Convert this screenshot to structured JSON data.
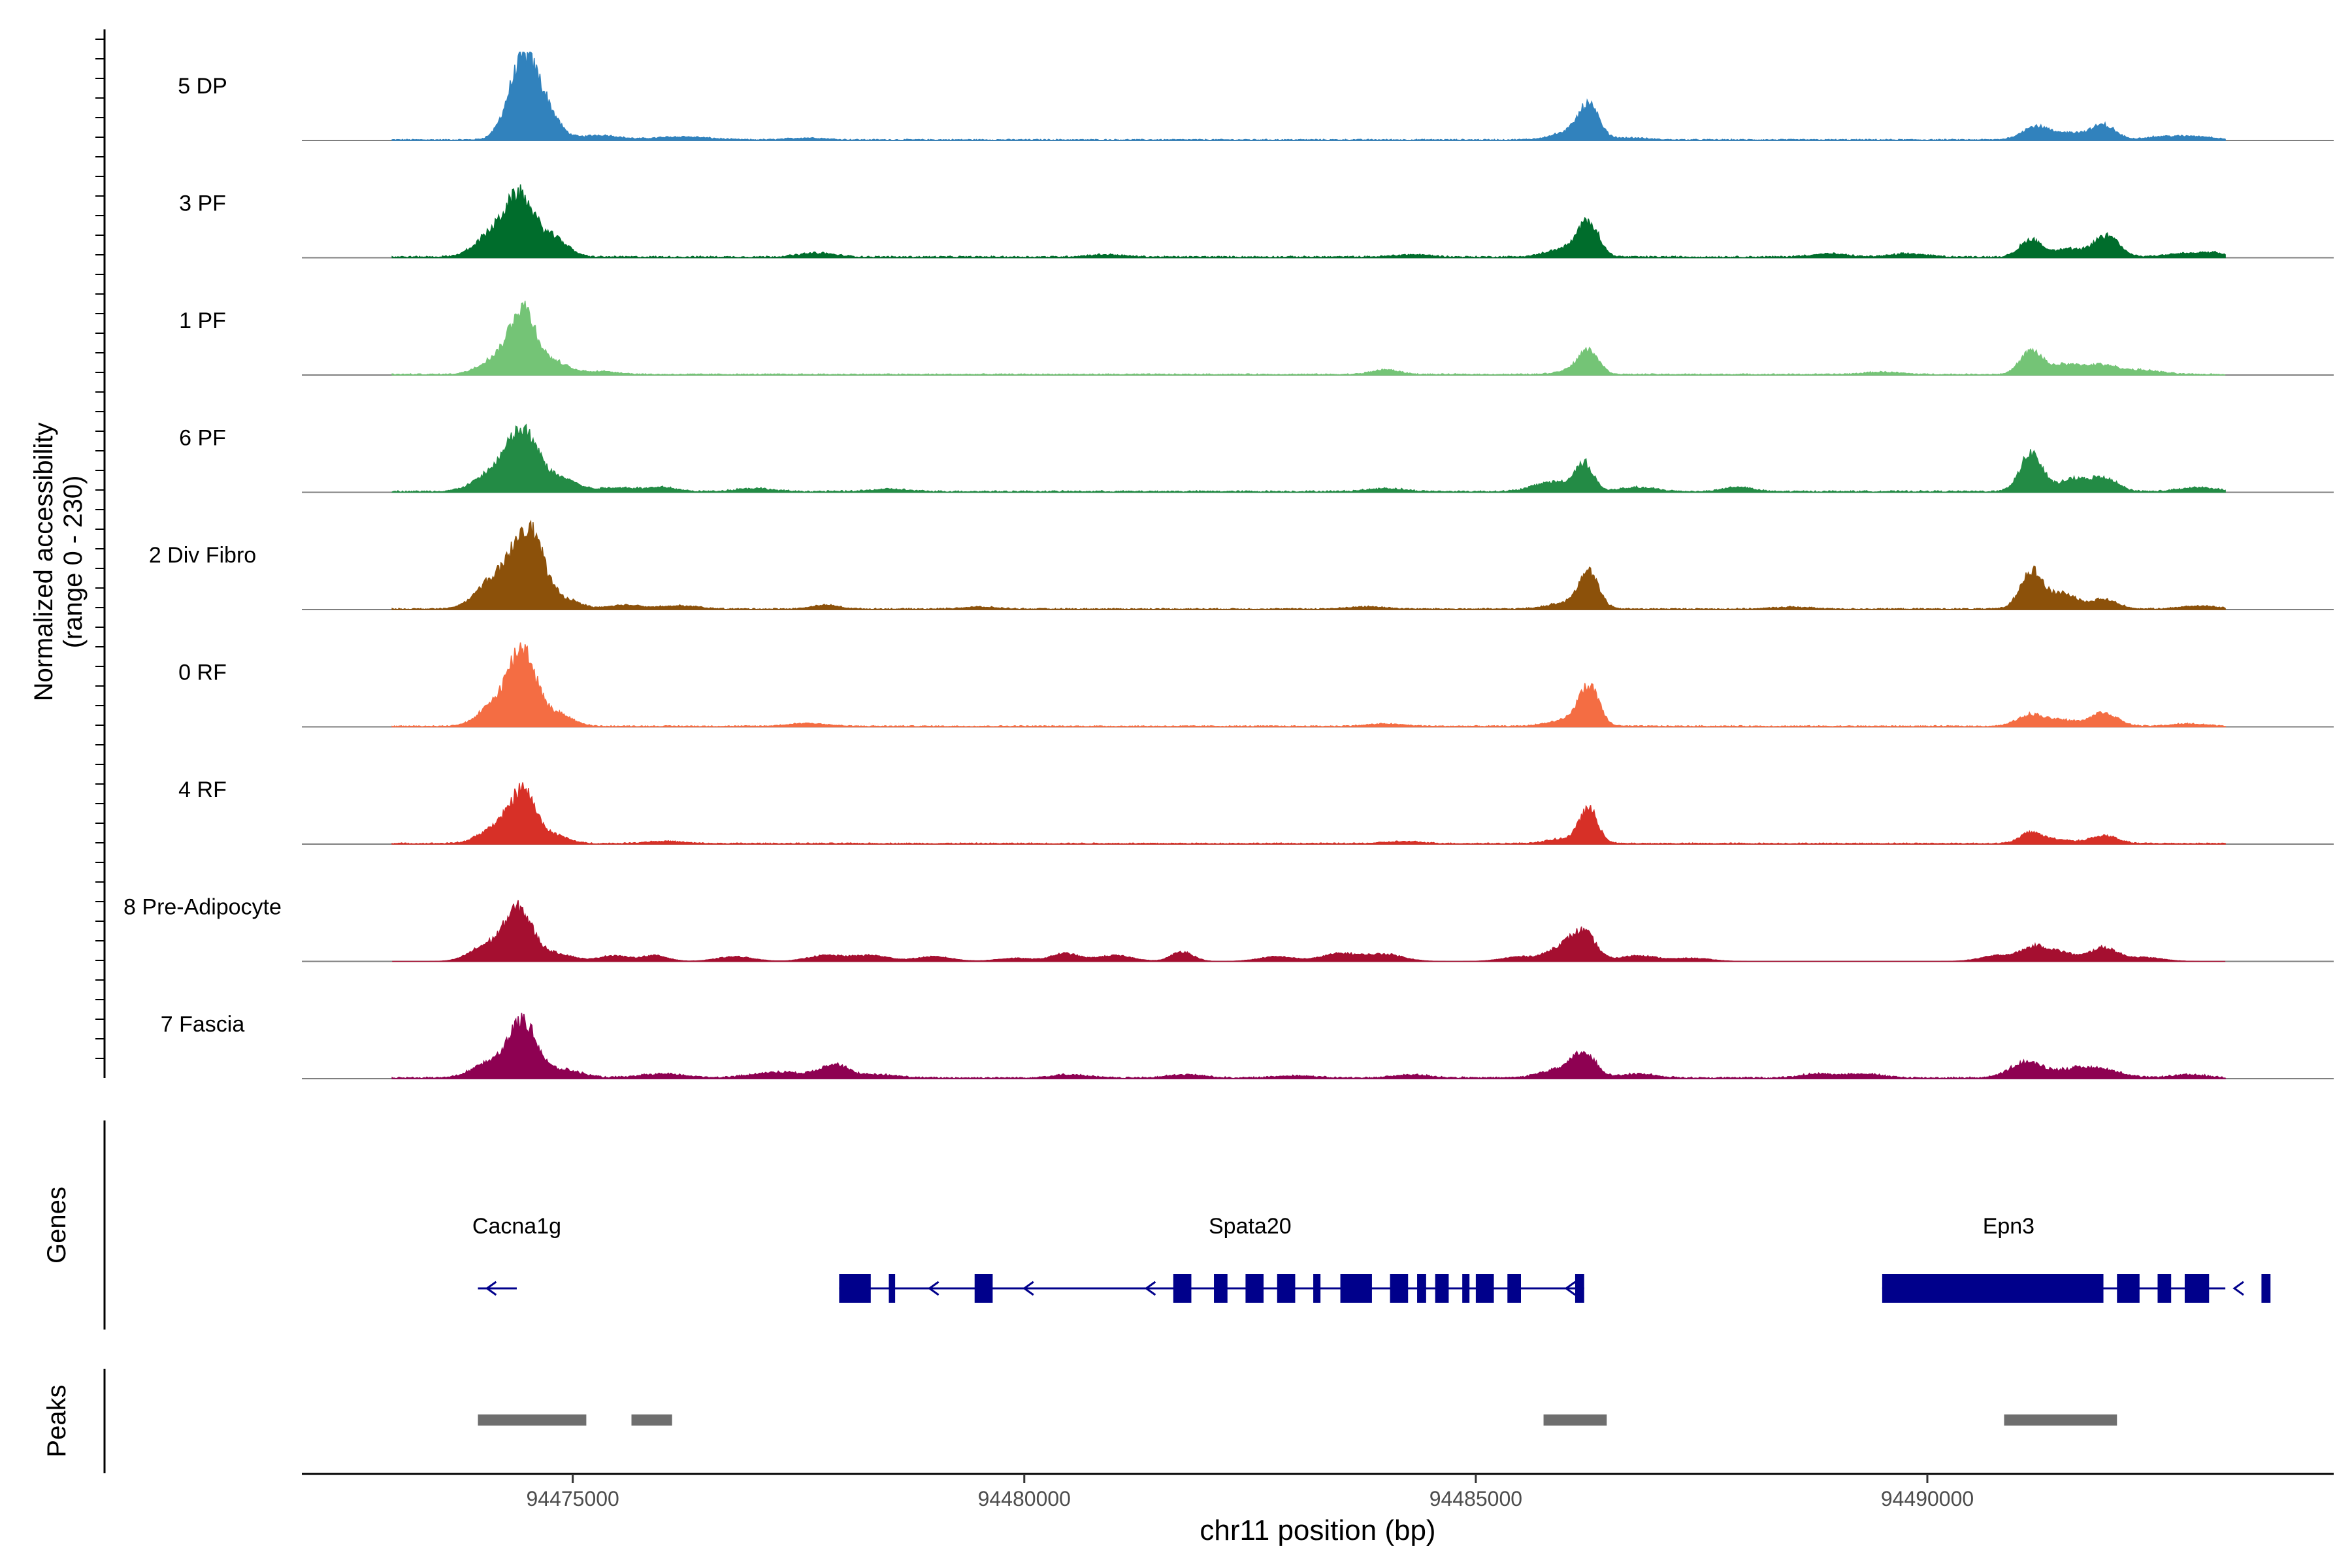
{
  "chart_data": {
    "type": "area",
    "chromosome": "chr11",
    "xlim": [
      94472000,
      94494500
    ],
    "xticks": [
      94475000,
      94480000,
      94485000,
      94490000
    ],
    "xtick_labels": [
      "94475000",
      "94480000",
      "94485000",
      "94490000"
    ],
    "xlabel": "chr11 position (bp)",
    "ylabel_line1": "Normalized accessibility",
    "ylabel_line2": "(range 0 - 230)",
    "ylim": [
      0,
      230
    ],
    "genes_label": "Genes",
    "peaks_label": "Peaks",
    "signal_region": [
      94473000,
      94493300
    ],
    "tracks": [
      {
        "name": "5 DP",
        "color": "#3182BD",
        "peaks": [
          [
            94474450,
            200,
            160
          ],
          [
            94474700,
            60,
            150
          ],
          [
            94475300,
            12,
            200
          ],
          [
            94476200,
            8,
            300
          ],
          [
            94477600,
            5,
            200
          ],
          [
            94486250,
            80,
            110
          ],
          [
            94486050,
            20,
            200
          ],
          [
            94486700,
            5,
            200
          ],
          [
            94491200,
            35,
            150
          ],
          [
            94491600,
            18,
            150
          ],
          [
            94491950,
            38,
            130
          ],
          [
            94492600,
            8,
            200
          ],
          [
            94493000,
            8,
            200
          ]
        ],
        "noise": 3
      },
      {
        "name": "3 PF",
        "color": "#006D2C",
        "peaks": [
          [
            94474420,
            150,
            160
          ],
          [
            94474100,
            55,
            180
          ],
          [
            94474800,
            45,
            150
          ],
          [
            94477700,
            10,
            200
          ],
          [
            94480900,
            6,
            200
          ],
          [
            94484300,
            6,
            200
          ],
          [
            94486250,
            85,
            110
          ],
          [
            94486000,
            22,
            200
          ],
          [
            94488900,
            8,
            200
          ],
          [
            94489800,
            8,
            200
          ],
          [
            94491150,
            45,
            120
          ],
          [
            94491550,
            20,
            150
          ],
          [
            94491980,
            55,
            140
          ],
          [
            94492800,
            8,
            200
          ],
          [
            94493150,
            10,
            150
          ]
        ],
        "noise": 4
      },
      {
        "name": "1 PF",
        "color": "#74C476",
        "peaks": [
          [
            94474450,
            165,
            140
          ],
          [
            94474150,
            40,
            180
          ],
          [
            94474800,
            30,
            150
          ],
          [
            94475300,
            8,
            200
          ],
          [
            94484000,
            12,
            150
          ],
          [
            94486250,
            60,
            110
          ],
          [
            94486050,
            10,
            150
          ],
          [
            94489500,
            6,
            200
          ],
          [
            94491150,
            60,
            120
          ],
          [
            94491500,
            22,
            150
          ],
          [
            94491900,
            25,
            200
          ],
          [
            94492400,
            10,
            200
          ]
        ],
        "noise": 3
      },
      {
        "name": "6 PF",
        "color": "#238B45",
        "peaks": [
          [
            94474450,
            150,
            180
          ],
          [
            94474100,
            40,
            200
          ],
          [
            94474900,
            30,
            150
          ],
          [
            94475500,
            10,
            250
          ],
          [
            94476000,
            10,
            150
          ],
          [
            94477000,
            8,
            200
          ],
          [
            94478500,
            6,
            200
          ],
          [
            94484000,
            8,
            200
          ],
          [
            94486200,
            70,
            100
          ],
          [
            94485850,
            25,
            200
          ],
          [
            94486800,
            10,
            200
          ],
          [
            94487900,
            12,
            150
          ],
          [
            94491150,
            100,
            120
          ],
          [
            94491600,
            30,
            150
          ],
          [
            94491950,
            35,
            150
          ],
          [
            94493000,
            10,
            200
          ]
        ],
        "noise": 4
      },
      {
        "name": "2 Div Fibro",
        "color": "#8C510A",
        "peaks": [
          [
            94474500,
            215,
            170
          ],
          [
            94474100,
            70,
            180
          ],
          [
            94474950,
            20,
            150
          ],
          [
            94475600,
            10,
            200
          ],
          [
            94476200,
            8,
            200
          ],
          [
            94477800,
            10,
            150
          ],
          [
            94479500,
            5,
            200
          ],
          [
            94483800,
            6,
            200
          ],
          [
            94486250,
            90,
            110
          ],
          [
            94486000,
            15,
            200
          ],
          [
            94488500,
            5,
            200
          ],
          [
            94491150,
            100,
            120
          ],
          [
            94491500,
            40,
            150
          ],
          [
            94491950,
            25,
            150
          ],
          [
            94493000,
            8,
            200
          ]
        ],
        "noise": 3
      },
      {
        "name": "0 RF",
        "color": "#F46D43",
        "peaks": [
          [
            94474450,
            190,
            150
          ],
          [
            94474150,
            55,
            180
          ],
          [
            94474850,
            30,
            150
          ],
          [
            94477600,
            8,
            200
          ],
          [
            94484000,
            6,
            200
          ],
          [
            94486250,
            100,
            110
          ],
          [
            94486000,
            15,
            200
          ],
          [
            94491150,
            30,
            150
          ],
          [
            94491500,
            15,
            150
          ],
          [
            94491950,
            35,
            150
          ],
          [
            94492900,
            6,
            200
          ]
        ],
        "noise": 3
      },
      {
        "name": "4 RF",
        "color": "#D73027",
        "peaks": [
          [
            94474450,
            130,
            140
          ],
          [
            94474150,
            40,
            180
          ],
          [
            94474800,
            20,
            150
          ],
          [
            94476000,
            6,
            200
          ],
          [
            94484200,
            5,
            200
          ],
          [
            94486250,
            85,
            100
          ],
          [
            94486000,
            12,
            200
          ],
          [
            94491150,
            28,
            120
          ],
          [
            94491450,
            10,
            150
          ],
          [
            94491950,
            20,
            150
          ]
        ],
        "noise": 3
      },
      {
        "name": "8 Pre-Adipocyte",
        "color": "#A50F30",
        "peaks": [
          [
            94474400,
            130,
            150
          ],
          [
            94474050,
            40,
            180
          ],
          [
            94474800,
            20,
            200
          ],
          [
            94475450,
            15,
            150
          ],
          [
            94475900,
            15,
            150
          ],
          [
            94476800,
            12,
            200
          ],
          [
            94477800,
            15,
            200
          ],
          [
            94478300,
            15,
            200
          ],
          [
            94479000,
            12,
            200
          ],
          [
            94479900,
            8,
            200
          ],
          [
            94480450,
            20,
            150
          ],
          [
            94481000,
            15,
            200
          ],
          [
            94481750,
            25,
            120
          ],
          [
            94482800,
            12,
            200
          ],
          [
            94483500,
            20,
            200
          ],
          [
            94484000,
            18,
            200
          ],
          [
            94485500,
            12,
            200
          ],
          [
            94486200,
            70,
            130
          ],
          [
            94485950,
            35,
            150
          ],
          [
            94486800,
            15,
            200
          ],
          [
            94487400,
            8,
            200
          ],
          [
            94490800,
            15,
            200
          ],
          [
            94491200,
            35,
            150
          ],
          [
            94491500,
            20,
            150
          ],
          [
            94491950,
            35,
            150
          ],
          [
            94492400,
            10,
            200
          ]
        ],
        "noise": 0
      },
      {
        "name": "7 Fascia",
        "color": "#8E0152",
        "peaks": [
          [
            94474450,
            140,
            150
          ],
          [
            94474100,
            40,
            200
          ],
          [
            94474900,
            20,
            200
          ],
          [
            94476000,
            10,
            250
          ],
          [
            94477300,
            15,
            300
          ],
          [
            94477900,
            35,
            150
          ],
          [
            94478400,
            8,
            200
          ],
          [
            94480500,
            8,
            200
          ],
          [
            94481800,
            8,
            200
          ],
          [
            94483000,
            6,
            200
          ],
          [
            94484300,
            8,
            200
          ],
          [
            94486200,
            60,
            130
          ],
          [
            94485900,
            20,
            200
          ],
          [
            94486800,
            10,
            200
          ],
          [
            94488800,
            10,
            200
          ],
          [
            94489300,
            10,
            200
          ],
          [
            94491100,
            40,
            180
          ],
          [
            94491600,
            20,
            200
          ],
          [
            94491950,
            20,
            200
          ],
          [
            94492900,
            8,
            200
          ]
        ],
        "noise": 4
      }
    ],
    "genes": [
      {
        "name": "Cacna1g",
        "label_pos": 94474380,
        "start": 94473950,
        "end": 94474380,
        "strand": "-",
        "exons": []
      },
      {
        "name": "Spata20",
        "label_pos": 94482500,
        "start": 94477950,
        "end": 94486200,
        "strand": "-",
        "exons": [
          [
            94477950,
            94478300
          ],
          [
            94478500,
            94478570
          ],
          [
            94479450,
            94479650
          ],
          [
            94481650,
            94481850
          ],
          [
            94482100,
            94482250
          ],
          [
            94482450,
            94482650
          ],
          [
            94482800,
            94483000
          ],
          [
            94483200,
            94483280
          ],
          [
            94483500,
            94483850
          ],
          [
            94484050,
            94484250
          ],
          [
            94484350,
            94484450
          ],
          [
            94484550,
            94484700
          ],
          [
            94484850,
            94484930
          ],
          [
            94485000,
            94485200
          ],
          [
            94485350,
            94485500
          ],
          [
            94486100,
            94486200
          ]
        ],
        "arrows": [
          94478950,
          94480000,
          94481350,
          94486000
        ]
      },
      {
        "name": "Epn3",
        "label_pos": 94490900,
        "start": 94489500,
        "end": 94493300,
        "strand": "-",
        "exons": [
          [
            94489500,
            94491950
          ],
          [
            94492100,
            94492350
          ],
          [
            94492550,
            94492700
          ],
          [
            94492850,
            94493120
          ],
          [
            94493700,
            94493800
          ]
        ],
        "arrows": [
          94493400
        ]
      }
    ],
    "peak_regions": [
      [
        94473950,
        94475150
      ],
      [
        94475650,
        94476100
      ],
      [
        94485750,
        94486450
      ],
      [
        94490850,
        94492100
      ]
    ]
  }
}
